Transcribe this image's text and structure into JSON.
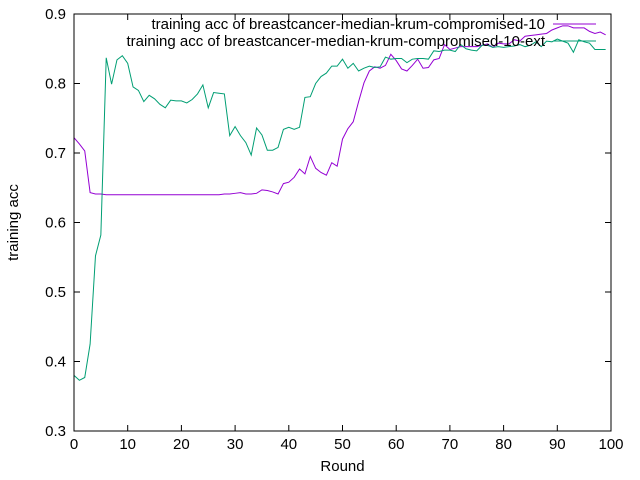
{
  "chart_data": {
    "type": "line",
    "title": "",
    "xlabel": "Round",
    "ylabel": "training acc",
    "xlim": [
      0,
      100
    ],
    "ylim": [
      0.3,
      0.9
    ],
    "grid": false,
    "legend_position": "top-right",
    "x_ticks": [
      "0",
      "10",
      "20",
      "30",
      "40",
      "50",
      "60",
      "70",
      "80",
      "90",
      "100"
    ],
    "y_ticks": [
      "0.3",
      "0.4",
      "0.5",
      "0.6",
      "0.7",
      "0.8",
      "0.9"
    ],
    "series": [
      {
        "name": "training acc of breastcancer-median-krum-compromised-10",
        "color": "#9400d3",
        "x": [
          0,
          1,
          2,
          3,
          4,
          5,
          6,
          7,
          8,
          9,
          10,
          11,
          12,
          13,
          14,
          15,
          16,
          17,
          18,
          19,
          20,
          21,
          22,
          23,
          24,
          25,
          26,
          27,
          28,
          29,
          30,
          31,
          32,
          33,
          34,
          35,
          36,
          37,
          38,
          39,
          40,
          41,
          42,
          43,
          44,
          45,
          46,
          47,
          48,
          49,
          50,
          51,
          52,
          53,
          54,
          55,
          56,
          57,
          58,
          59,
          60,
          61,
          62,
          63,
          64,
          65,
          66,
          67,
          68,
          69,
          70,
          71,
          72,
          73,
          74,
          75,
          76,
          77,
          78,
          79,
          80,
          81,
          82,
          83,
          84,
          85,
          86,
          87,
          88,
          89,
          90,
          91,
          92,
          93,
          94,
          95,
          96,
          97,
          98,
          99
        ],
        "y": [
          0.722,
          0.713,
          0.703,
          0.643,
          0.641,
          0.641,
          0.64,
          0.64,
          0.64,
          0.64,
          0.64,
          0.64,
          0.64,
          0.64,
          0.64,
          0.64,
          0.64,
          0.64,
          0.64,
          0.64,
          0.64,
          0.64,
          0.64,
          0.64,
          0.64,
          0.64,
          0.64,
          0.64,
          0.641,
          0.641,
          0.642,
          0.643,
          0.641,
          0.641,
          0.642,
          0.647,
          0.646,
          0.644,
          0.641,
          0.656,
          0.658,
          0.665,
          0.677,
          0.67,
          0.695,
          0.678,
          0.672,
          0.668,
          0.686,
          0.681,
          0.72,
          0.735,
          0.745,
          0.774,
          0.801,
          0.818,
          0.824,
          0.822,
          0.826,
          0.842,
          0.833,
          0.821,
          0.818,
          0.826,
          0.835,
          0.822,
          0.823,
          0.834,
          0.836,
          0.856,
          0.849,
          0.851,
          0.853,
          0.853,
          0.853,
          0.853,
          0.855,
          0.857,
          0.852,
          0.858,
          0.857,
          0.857,
          0.863,
          0.861,
          0.868,
          0.869,
          0.87,
          0.871,
          0.872,
          0.877,
          0.88,
          0.883,
          0.883,
          0.88,
          0.88,
          0.88,
          0.875,
          0.872,
          0.874,
          0.87
        ]
      },
      {
        "name": "training acc of breastcancer-median-krum-compromised-10-ext",
        "color": "#009e73",
        "x": [
          0,
          1,
          2,
          3,
          4,
          5,
          6,
          7,
          8,
          9,
          10,
          11,
          12,
          13,
          14,
          15,
          16,
          17,
          18,
          19,
          20,
          21,
          22,
          23,
          24,
          25,
          26,
          27,
          28,
          29,
          30,
          31,
          32,
          33,
          34,
          35,
          36,
          37,
          38,
          39,
          40,
          41,
          42,
          43,
          44,
          45,
          46,
          47,
          48,
          49,
          50,
          51,
          52,
          53,
          54,
          55,
          56,
          57,
          58,
          59,
          60,
          61,
          62,
          63,
          64,
          65,
          66,
          67,
          68,
          69,
          70,
          71,
          72,
          73,
          74,
          75,
          76,
          77,
          78,
          79,
          80,
          81,
          82,
          83,
          84,
          85,
          86,
          87,
          88,
          89,
          90,
          91,
          92,
          93,
          94,
          95,
          96,
          97,
          98,
          99
        ],
        "y": [
          0.38,
          0.373,
          0.377,
          0.425,
          0.552,
          0.582,
          0.837,
          0.799,
          0.834,
          0.84,
          0.829,
          0.795,
          0.79,
          0.774,
          0.783,
          0.778,
          0.77,
          0.765,
          0.776,
          0.775,
          0.775,
          0.772,
          0.777,
          0.785,
          0.798,
          0.765,
          0.787,
          0.786,
          0.785,
          0.725,
          0.738,
          0.725,
          0.715,
          0.697,
          0.736,
          0.726,
          0.704,
          0.704,
          0.708,
          0.734,
          0.737,
          0.734,
          0.737,
          0.78,
          0.781,
          0.8,
          0.81,
          0.815,
          0.825,
          0.825,
          0.835,
          0.822,
          0.829,
          0.818,
          0.822,
          0.825,
          0.823,
          0.824,
          0.838,
          0.835,
          0.836,
          0.836,
          0.83,
          0.835,
          0.836,
          0.836,
          0.835,
          0.847,
          0.846,
          0.848,
          0.848,
          0.846,
          0.856,
          0.85,
          0.848,
          0.847,
          0.855,
          0.855,
          0.852,
          0.853,
          0.852,
          0.853,
          0.854,
          0.856,
          0.853,
          0.855,
          0.86,
          0.853,
          0.861,
          0.86,
          0.864,
          0.861,
          0.858,
          0.845,
          0.863,
          0.86,
          0.858,
          0.849,
          0.849,
          0.849
        ]
      }
    ]
  }
}
